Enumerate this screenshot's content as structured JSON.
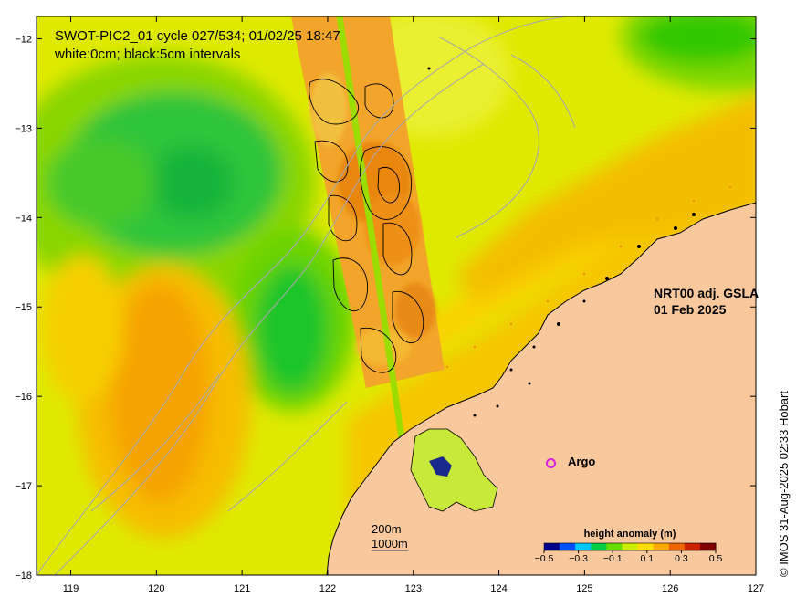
{
  "title_line1": "SWOT-PIC2_01 cycle 027/534; 01/02/25 18:47",
  "title_line2": "white:0cm; black:5cm intervals",
  "product_line1": "NRT00 adj. GSLA",
  "product_line2": "01 Feb 2025",
  "argo_label": "Argo",
  "depth_labels": [
    "200m",
    "1000m"
  ],
  "credit": "© IMOS 31-Aug-2025 02:33 Hobart",
  "axes": {
    "lon_ticks": [
      119,
      120,
      121,
      122,
      123,
      124,
      125,
      126,
      127
    ],
    "lat_ticks": [
      -12,
      -13,
      -14,
      -15,
      -16,
      -17,
      -18
    ],
    "lon_range": [
      118.6,
      127
    ],
    "lat_range": [
      -18,
      -11.75
    ]
  },
  "colorbar": {
    "title": "height anomaly (m)",
    "tick_labels": [
      "-0.5",
      "-0.3",
      "-0.1",
      "0.1",
      "0.3",
      "0.5"
    ],
    "range": [
      -0.5,
      0.5
    ],
    "colors": [
      "#00008a",
      "#0050ff",
      "#00c8ff",
      "#00cc44",
      "#66dd00",
      "#ccee00",
      "#ffdd00",
      "#ffaa00",
      "#ee6600",
      "#cc2200",
      "#800000"
    ]
  },
  "colors": {
    "land": "#f9c89c",
    "coastline": "#000000",
    "bathymetry": "#a8a8a8",
    "argo": "#e020e0"
  }
}
